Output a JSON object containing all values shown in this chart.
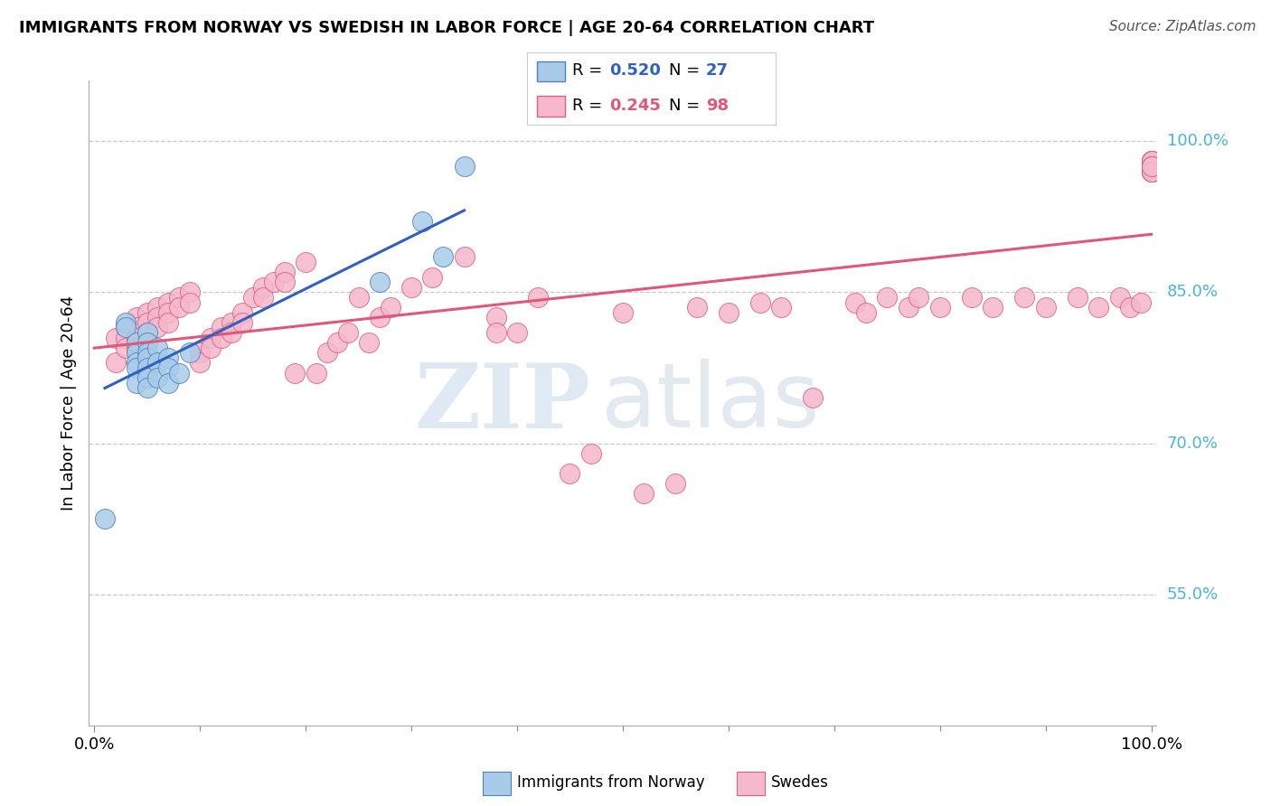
{
  "title": "IMMIGRANTS FROM NORWAY VS SWEDISH IN LABOR FORCE | AGE 20-64 CORRELATION CHART",
  "source": "Source: ZipAtlas.com",
  "ylabel": "In Labor Force | Age 20-64",
  "y_ticks_labels": [
    "55.0%",
    "70.0%",
    "85.0%",
    "100.0%"
  ],
  "y_tick_vals": [
    0.55,
    0.7,
    0.85,
    1.0
  ],
  "xlim": [
    -0.005,
    1.005
  ],
  "ylim": [
    0.42,
    1.06
  ],
  "norway_color_face": "#a8cce8",
  "norway_color_edge": "#5080c0",
  "swedes_color_face": "#f5b8cc",
  "swedes_color_edge": "#e06080",
  "norway_line_color": "#3060c0",
  "swedes_line_color": "#e05878",
  "tick_label_color": "#4ab4d8",
  "legend_label_norway": "Immigrants from Norway",
  "legend_label_swedes": "Swedes",
  "norway_R": "0.520",
  "norway_N": "27",
  "swedes_R": "0.245",
  "swedes_N": "98",
  "norway_x": [
    0.01,
    0.03,
    0.03,
    0.04,
    0.04,
    0.04,
    0.04,
    0.04,
    0.05,
    0.05,
    0.05,
    0.05,
    0.05,
    0.05,
    0.05,
    0.06,
    0.06,
    0.06,
    0.07,
    0.07,
    0.07,
    0.08,
    0.09,
    0.27,
    0.31,
    0.33,
    0.35
  ],
  "norway_y": [
    0.625,
    0.82,
    0.815,
    0.8,
    0.79,
    0.78,
    0.775,
    0.76,
    0.81,
    0.8,
    0.79,
    0.785,
    0.775,
    0.765,
    0.755,
    0.795,
    0.78,
    0.765,
    0.785,
    0.775,
    0.76,
    0.77,
    0.79,
    0.86,
    0.92,
    0.885,
    0.975
  ],
  "swedes_x": [
    0.02,
    0.02,
    0.03,
    0.03,
    0.03,
    0.04,
    0.04,
    0.04,
    0.04,
    0.05,
    0.05,
    0.05,
    0.05,
    0.06,
    0.06,
    0.06,
    0.07,
    0.07,
    0.07,
    0.08,
    0.08,
    0.09,
    0.09,
    0.1,
    0.1,
    0.11,
    0.11,
    0.12,
    0.12,
    0.13,
    0.13,
    0.14,
    0.14,
    0.15,
    0.16,
    0.16,
    0.17,
    0.18,
    0.18,
    0.19,
    0.2,
    0.21,
    0.22,
    0.23,
    0.24,
    0.25,
    0.26,
    0.27,
    0.28,
    0.3,
    0.32,
    0.35,
    0.38,
    0.38,
    0.4,
    0.42,
    0.45,
    0.47,
    0.5,
    0.52,
    0.55,
    0.57,
    0.6,
    0.63,
    0.65,
    0.68,
    0.72,
    0.73,
    0.75,
    0.77,
    0.78,
    0.8,
    0.83,
    0.85,
    0.88,
    0.9,
    0.93,
    0.95,
    0.97,
    0.98,
    0.99,
    1.0,
    1.0,
    1.0,
    1.0,
    1.0,
    1.0,
    1.0,
    1.0,
    1.0,
    1.0,
    1.0,
    1.0,
    1.0,
    1.0,
    1.0,
    1.0,
    1.0
  ],
  "swedes_y": [
    0.805,
    0.78,
    0.815,
    0.805,
    0.795,
    0.825,
    0.815,
    0.805,
    0.795,
    0.83,
    0.82,
    0.81,
    0.8,
    0.835,
    0.825,
    0.815,
    0.84,
    0.83,
    0.82,
    0.845,
    0.835,
    0.85,
    0.84,
    0.79,
    0.78,
    0.805,
    0.795,
    0.815,
    0.805,
    0.82,
    0.81,
    0.83,
    0.82,
    0.845,
    0.855,
    0.845,
    0.86,
    0.87,
    0.86,
    0.77,
    0.88,
    0.77,
    0.79,
    0.8,
    0.81,
    0.845,
    0.8,
    0.825,
    0.835,
    0.855,
    0.865,
    0.885,
    0.825,
    0.81,
    0.81,
    0.845,
    0.67,
    0.69,
    0.83,
    0.65,
    0.66,
    0.835,
    0.83,
    0.84,
    0.835,
    0.745,
    0.84,
    0.83,
    0.845,
    0.835,
    0.845,
    0.835,
    0.845,
    0.835,
    0.845,
    0.835,
    0.845,
    0.835,
    0.845,
    0.835,
    0.84,
    0.98,
    0.975,
    0.97,
    0.98,
    0.975,
    0.97,
    0.98,
    0.975,
    0.97,
    0.98,
    0.975,
    0.97,
    0.975,
    0.98,
    0.975,
    0.97,
    0.975
  ]
}
